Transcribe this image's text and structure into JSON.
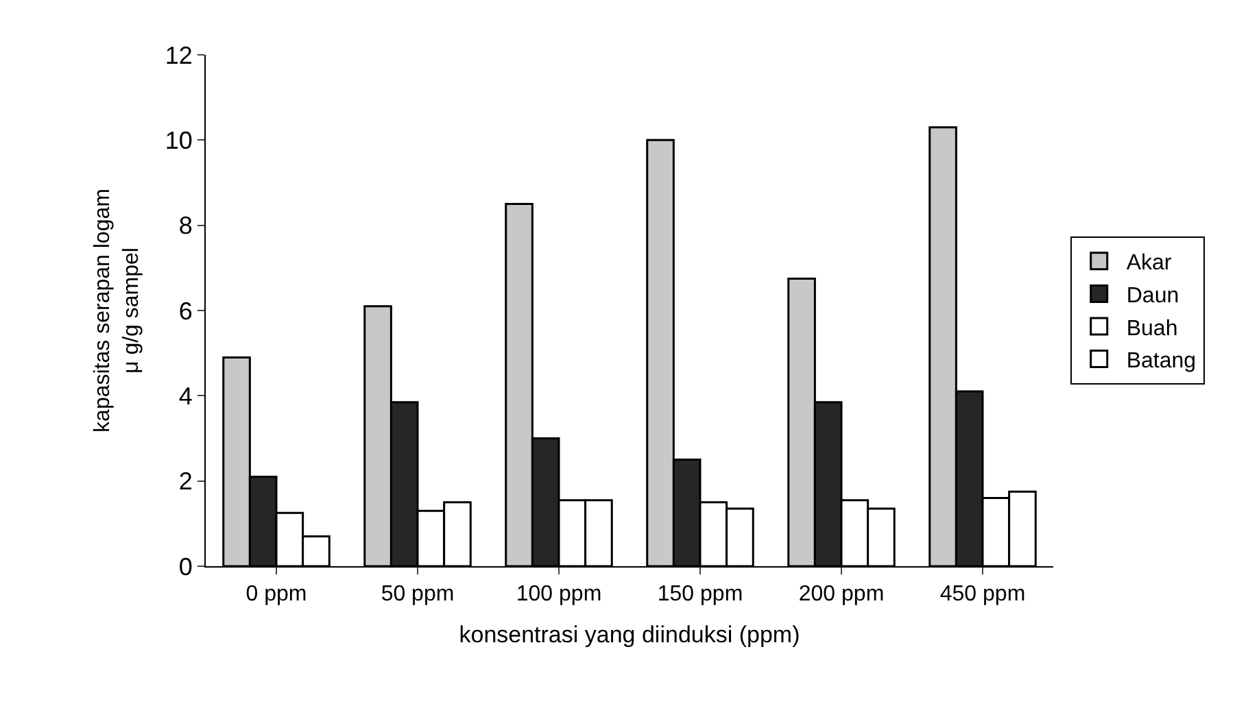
{
  "chart_data": {
    "type": "bar",
    "xlabel": "konsentrasi yang diinduksi (ppm)",
    "ylabel": "kapasitas serapan logam μ g/g sampel",
    "categories": [
      "0 ppm",
      "50 ppm",
      "100 ppm",
      "150 ppm",
      "200 ppm",
      "450 ppm"
    ],
    "series": [
      {
        "name": "Akar",
        "color": "#c8c8c8",
        "values": [
          4.9,
          6.1,
          8.5,
          10.0,
          6.75,
          10.3
        ]
      },
      {
        "name": "Daun",
        "color": "#262626",
        "values": [
          2.1,
          3.85,
          3.0,
          2.5,
          3.85,
          4.1
        ]
      },
      {
        "name": "Buah",
        "color": "#ffffff",
        "values": [
          1.25,
          1.3,
          1.55,
          1.5,
          1.55,
          1.6
        ]
      },
      {
        "name": "Batang",
        "color": "#ffffff",
        "values": [
          0.7,
          1.5,
          1.55,
          1.35,
          1.35,
          1.75
        ]
      }
    ],
    "ylim": [
      0,
      12
    ],
    "yticks": [
      0,
      2,
      4,
      6,
      8,
      10,
      12
    ],
    "legend": "right"
  }
}
